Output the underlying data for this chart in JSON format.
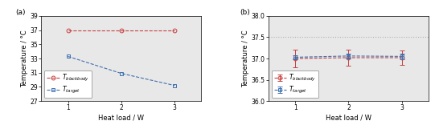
{
  "left": {
    "x": [
      1,
      2,
      3
    ],
    "red_y": [
      37.0,
      37.0,
      37.0
    ],
    "blue_y": [
      33.3,
      30.9,
      29.2
    ],
    "ylim": [
      27.0,
      39.0
    ],
    "yticks": [
      27.0,
      29.0,
      31.0,
      33.0,
      35.0,
      37.0,
      39.0
    ],
    "xlabel": "Heat load / W",
    "ylabel": "Temperature / °C",
    "red_label": "$T_{blackbody}$",
    "blue_label": "$T_{target}$",
    "panel_label": "(a)"
  },
  "right": {
    "x": [
      1,
      2,
      3
    ],
    "red_y": [
      37.0,
      37.02,
      37.02
    ],
    "blue_y": [
      37.03,
      37.06,
      37.05
    ],
    "red_yerr": [
      0.2,
      0.18,
      0.17
    ],
    "blue_yerr": [
      0.05,
      0.05,
      0.07
    ],
    "hline_y": 37.5,
    "ylim": [
      36.0,
      38.0
    ],
    "yticks": [
      36.0,
      36.5,
      37.0,
      37.5,
      38.0
    ],
    "xlabel": "Heat load / W",
    "ylabel": "Temperature / °C",
    "red_label": "$T_{blackbody}$",
    "blue_label": "$T_{target}$",
    "panel_label": "(b)"
  },
  "red_color": "#c84040",
  "blue_color": "#4070b0",
  "gray_color": "#b0b0b0",
  "bg_color": "#e8e8e8",
  "marker_size": 3.5,
  "line_width": 0.8,
  "font_size": 6.5,
  "label_font_size": 6.0,
  "tick_font_size": 5.5,
  "legend_font_size": 5.5
}
